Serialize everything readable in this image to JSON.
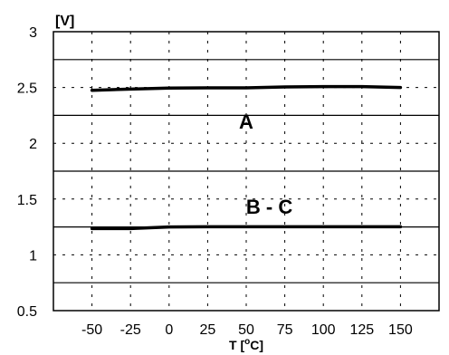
{
  "chart_data": {
    "type": "line",
    "ylabel": "[V]",
    "xlabel": "T [°C]",
    "xlabel_parts": {
      "prefix": "T [",
      "sup": "o",
      "suffix": "C]"
    },
    "xlim": [
      -75,
      175
    ],
    "ylim": [
      0.5,
      3.0
    ],
    "x_ticks": [
      -50,
      -25,
      0,
      25,
      50,
      75,
      100,
      125,
      150
    ],
    "x_tick_labels": [
      "-50",
      "-25",
      "0",
      "25",
      "50",
      "75",
      "100",
      "125",
      "150"
    ],
    "y_ticks": [
      0.5,
      1.0,
      1.5,
      2.0,
      2.5,
      3.0
    ],
    "y_tick_labels": [
      "0.5",
      "1",
      "1.5",
      "2",
      "2.5",
      "3"
    ],
    "grid": {
      "solid_y": [
        0.75,
        1.25,
        1.75,
        2.25,
        2.75
      ],
      "dotted_x": true,
      "dotted_y": true
    },
    "series": [
      {
        "name": "A",
        "x": [
          -50,
          -25,
          0,
          25,
          50,
          75,
          100,
          125,
          150
        ],
        "y": [
          2.475,
          2.485,
          2.495,
          2.497,
          2.497,
          2.505,
          2.508,
          2.508,
          2.5
        ],
        "color": "#000000"
      },
      {
        "name": "B - C",
        "x": [
          -50,
          -25,
          0,
          25,
          50,
          75,
          100,
          125,
          150
        ],
        "y": [
          1.235,
          1.235,
          1.25,
          1.252,
          1.252,
          1.252,
          1.252,
          1.252,
          1.252
        ],
        "color": "#000000"
      }
    ],
    "annotations": [
      {
        "text": "A",
        "x": 50,
        "y": 2.13
      },
      {
        "text": "B - C",
        "x": 65,
        "y": 1.37
      }
    ]
  }
}
